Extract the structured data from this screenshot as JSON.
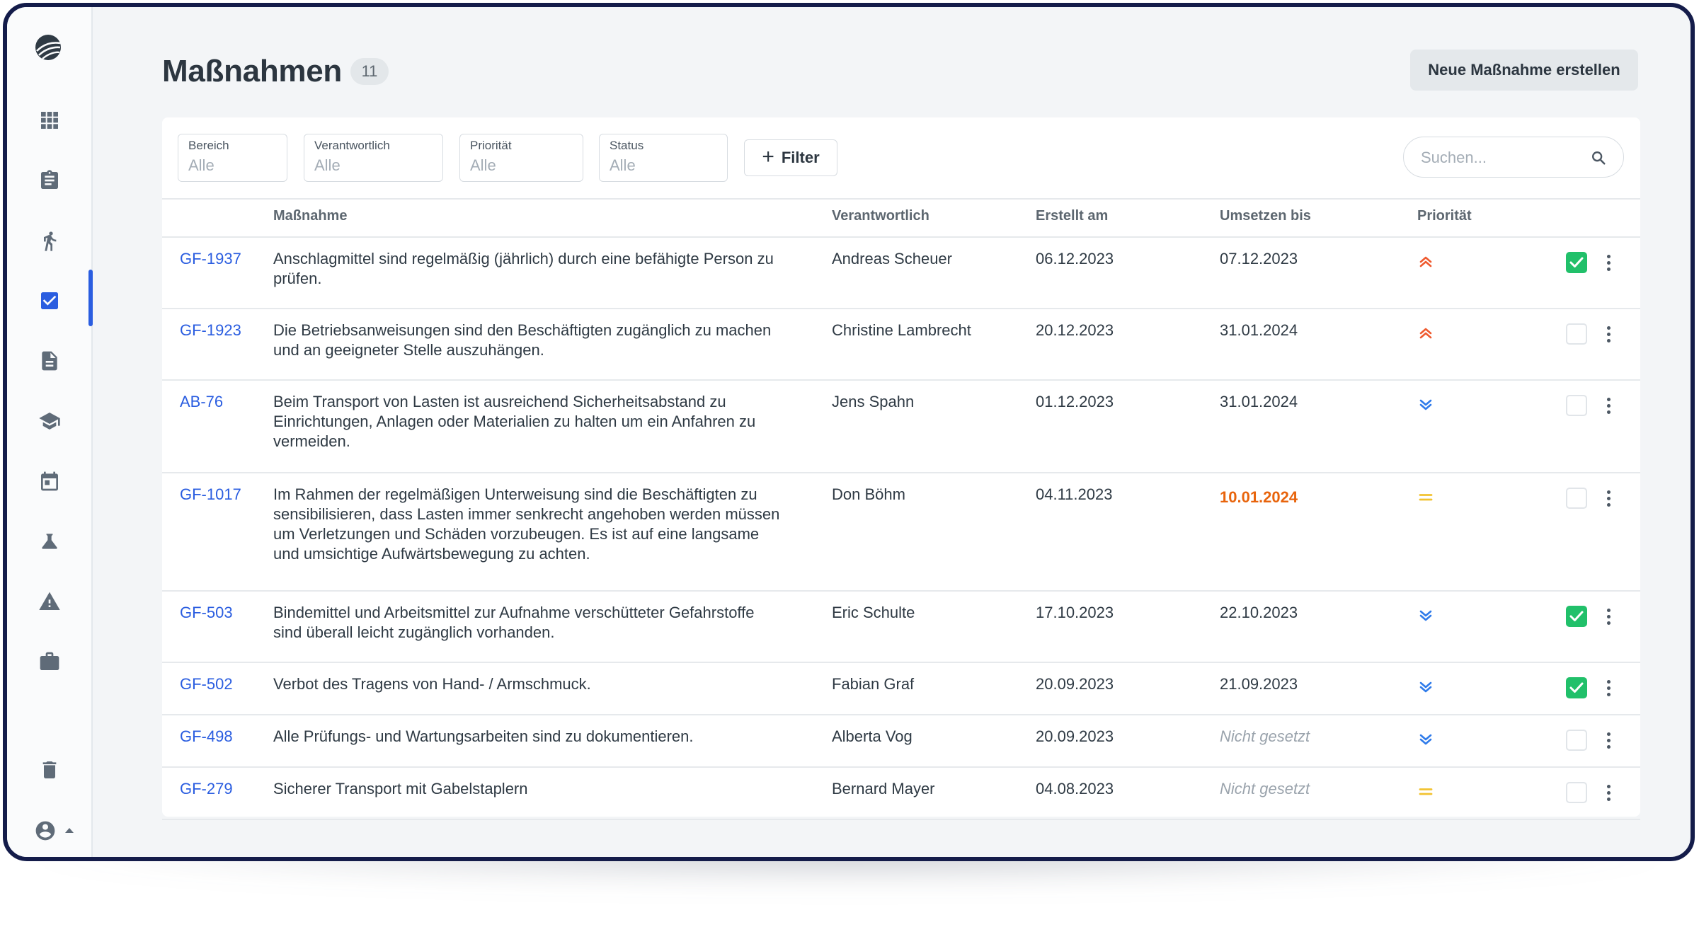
{
  "header": {
    "title": "Maßnahmen",
    "count": "11",
    "create_label": "Neue Maßnahme erstellen"
  },
  "colors": {
    "accent": "#2a5de0",
    "success": "#21c06a",
    "overdue": "#e8640c",
    "priority_high": "#ef5a2f",
    "priority_low": "#2f7bea",
    "priority_medium": "#f2c230"
  },
  "sidebar": {
    "items": [
      {
        "icon": "grid-icon"
      },
      {
        "icon": "clipboard-icon"
      },
      {
        "icon": "walking-person-icon"
      },
      {
        "icon": "checkbox-icon",
        "active": true
      },
      {
        "icon": "document-icon"
      },
      {
        "icon": "graduation-cap-icon"
      },
      {
        "icon": "calendar-icon"
      },
      {
        "icon": "flask-icon"
      },
      {
        "icon": "warning-icon"
      },
      {
        "icon": "briefcase-icon"
      }
    ],
    "bottom": [
      {
        "icon": "trash-icon"
      },
      {
        "icon": "user-account-icon"
      }
    ]
  },
  "filters": [
    {
      "label": "Bereich",
      "value": "Alle"
    },
    {
      "label": "Verantwortlich",
      "value": "Alle"
    },
    {
      "label": "Priorität",
      "value": "Alle"
    },
    {
      "label": "Status",
      "value": "Alle"
    }
  ],
  "filter_add_label": "Filter",
  "search": {
    "placeholder": "Suchen..."
  },
  "table": {
    "columns": [
      "Maßnahme",
      "Verantwortlich",
      "Erstellt am",
      "Umsetzen bis",
      "Priorität"
    ],
    "rows": [
      {
        "id": "GF-1937",
        "text": "Anschlagmittel sind regelmäßig (jährlich) durch eine befähigte Person zu prüfen.",
        "owner": "Andreas Scheuer",
        "created": "06.12.2023",
        "due": "07.12.2023",
        "due_state": "normal",
        "priority": "high",
        "done": true
      },
      {
        "id": "GF-1923",
        "text": "Die Betriebsanweisungen sind den Beschäftigten zugänglich zu machen und an geeigneter Stelle auszuhängen.",
        "owner": "Christine Lambrecht",
        "created": "20.12.2023",
        "due": "31.01.2024",
        "due_state": "normal",
        "priority": "high",
        "done": false
      },
      {
        "id": "AB-76",
        "text": "Beim Transport von Lasten ist ausreichend Sicherheitsabstand zu Einrichtungen, Anlagen oder Materialien zu halten um ein Anfahren zu vermeiden.",
        "owner": "Jens Spahn",
        "created": "01.12.2023",
        "due": "31.01.2024",
        "due_state": "normal",
        "priority": "low",
        "done": false
      },
      {
        "id": "GF-1017",
        "text": "Im Rahmen der regelmäßigen Unterweisung sind die Beschäftigten zu sensibilisieren, dass Lasten immer senkrecht angehoben werden müssen um Verletzungen und Schäden vorzubeugen. Es ist auf eine langsame und umsichtige Aufwärtsbewegung zu achten.",
        "owner": "Don Böhm",
        "created": "04.11.2023",
        "due": "10.01.2024",
        "due_state": "overdue",
        "priority": "medium",
        "done": false
      },
      {
        "id": "GF-503",
        "text": "Bindemittel und Arbeitsmittel zur Aufnahme verschütteter Gefahrstoffe sind überall leicht zugänglich vorhanden.",
        "owner": "Eric Schulte",
        "created": "17.10.2023",
        "due": "22.10.2023",
        "due_state": "normal",
        "priority": "low",
        "done": true
      },
      {
        "id": "GF-502",
        "text": "Verbot des Tragens von Hand- / Armschmuck.",
        "owner": "Fabian Graf",
        "created": "20.09.2023",
        "due": "21.09.2023",
        "due_state": "normal",
        "priority": "low",
        "done": true
      },
      {
        "id": "GF-498",
        "text": "Alle Prüfungs- und Wartungsarbeiten sind zu dokumentieren.",
        "owner": "Alberta Vog",
        "created": "20.09.2023",
        "due": "Nicht gesetzt",
        "due_state": "unset",
        "priority": "low",
        "done": false
      },
      {
        "id": "GF-279",
        "text": "Sicherer Transport mit Gabelstaplern",
        "owner": "Bernard Mayer",
        "created": "04.08.2023",
        "due": "Nicht gesetzt",
        "due_state": "unset",
        "priority": "medium",
        "done": false
      }
    ]
  }
}
